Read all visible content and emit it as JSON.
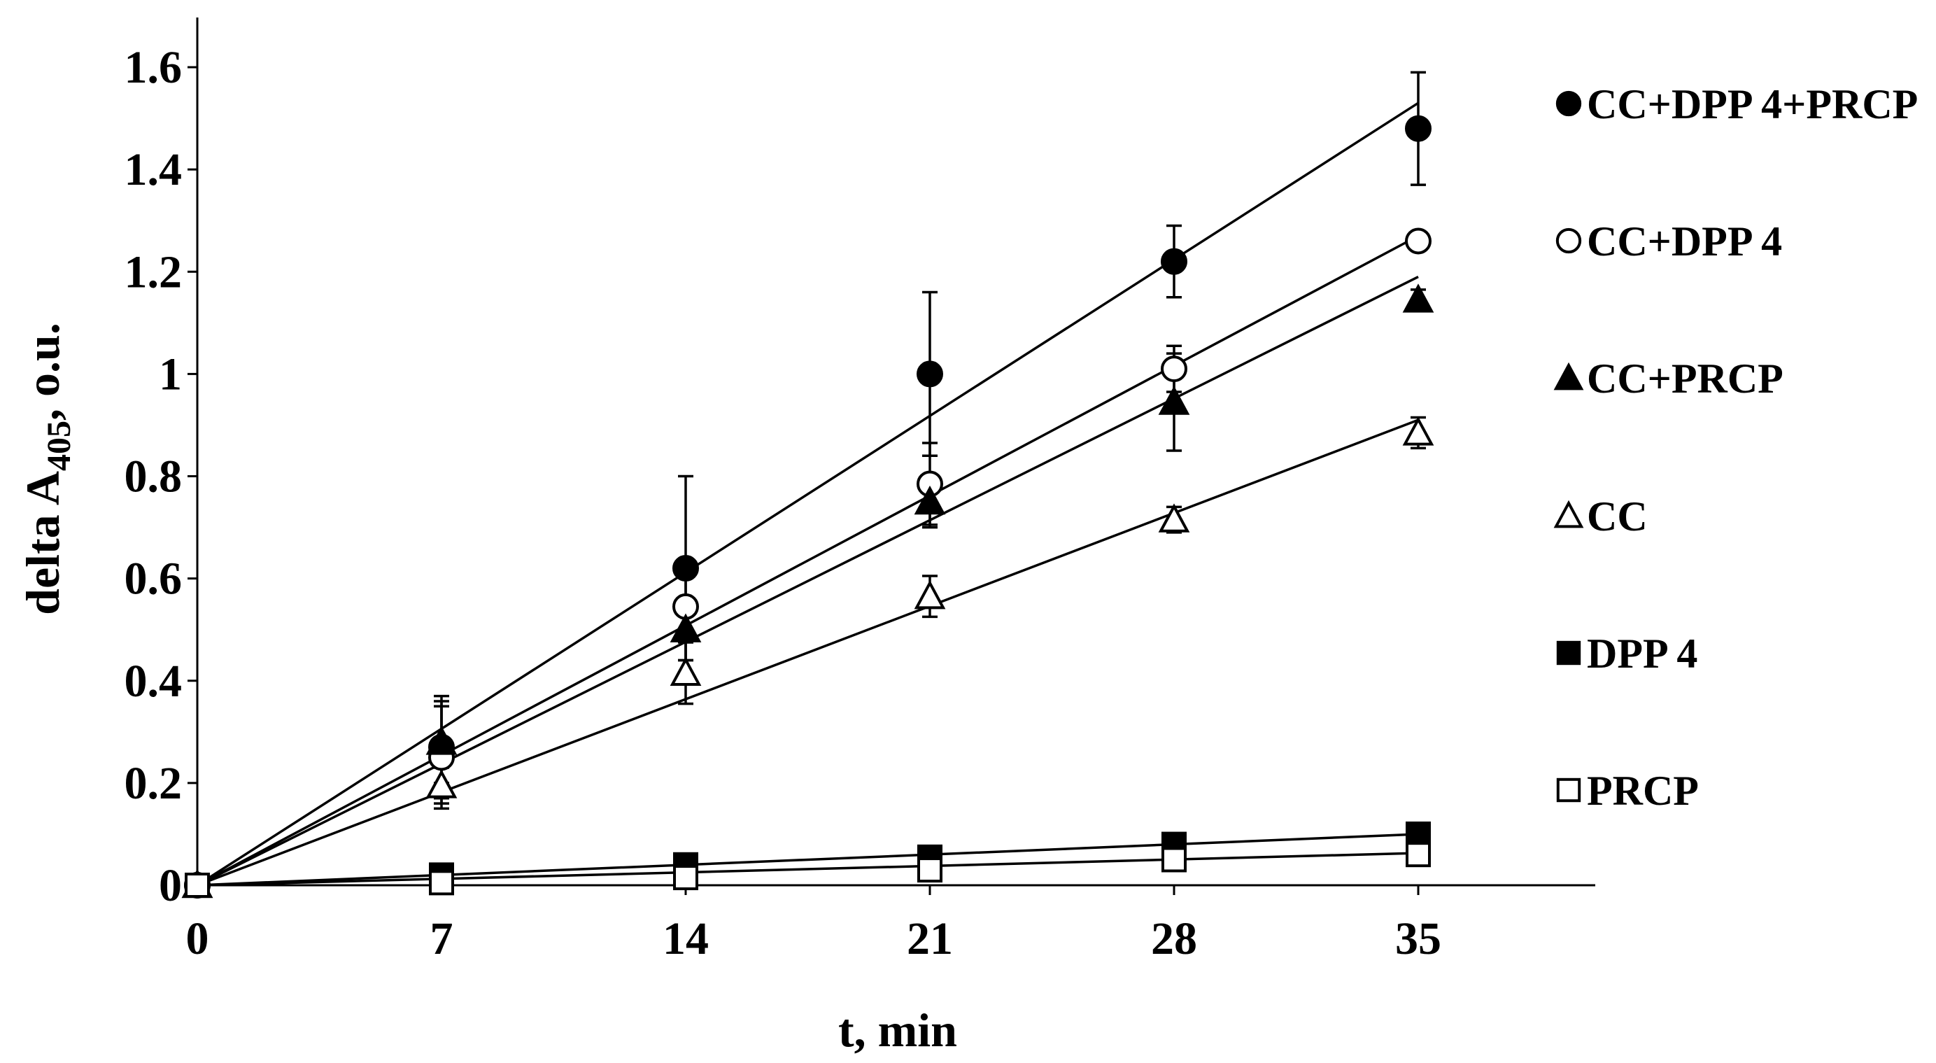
{
  "chart_data": {
    "type": "scatter",
    "title": "",
    "xlabel": "t, min",
    "ylabel_prefix": "delta A",
    "ylabel_subscript": "405",
    "ylabel_suffix": ", o.u.",
    "xlim": [
      0,
      40
    ],
    "ylim": [
      0,
      1.7
    ],
    "x_ticks": [
      0,
      7,
      14,
      21,
      28,
      35
    ],
    "x_tick_labels": [
      "0",
      "7",
      "14",
      "21",
      "28",
      "35"
    ],
    "y_ticks": [
      0,
      0.2,
      0.4,
      0.6,
      0.8,
      1.0,
      1.2,
      1.4,
      1.6
    ],
    "y_tick_labels": [
      "0",
      "0.2",
      "0.4",
      "0.6",
      "0.8",
      "1",
      "1.2",
      "1.4",
      "1.6"
    ],
    "grid": false,
    "legend_position": "right",
    "trendlines": "linear",
    "x": [
      0,
      7,
      14,
      21,
      28,
      35
    ],
    "series": [
      {
        "name": "CC+DPP 4+PRCP",
        "marker": "circle-filled",
        "values": [
          0,
          0.27,
          0.62,
          1.0,
          1.22,
          1.48
        ],
        "errors": [
          0,
          0.1,
          0.18,
          0.16,
          0.07,
          0.11
        ],
        "fit_end": 1.53
      },
      {
        "name": "CC+DPP 4",
        "marker": "circle-open",
        "values": [
          0,
          0.25,
          0.545,
          0.785,
          1.01,
          1.26
        ],
        "errors": [
          0,
          0.1,
          0.06,
          0.08,
          0.045,
          0.015
        ],
        "fit_end": 1.27
      },
      {
        "name": "CC+PRCP",
        "marker": "triangle-filled",
        "values": [
          0,
          0.28,
          0.5,
          0.75,
          0.945,
          1.145
        ],
        "errors": [
          0,
          0.08,
          0.06,
          0.05,
          0.095,
          0.02
        ],
        "fit_end": 1.19
      },
      {
        "name": "CC",
        "marker": "triangle-open",
        "values": [
          0,
          0.195,
          0.415,
          0.565,
          0.715,
          0.885
        ],
        "errors": [
          0,
          0.035,
          0.06,
          0.04,
          0.025,
          0.03
        ],
        "fit_end": 0.91
      },
      {
        "name": "DPP 4",
        "marker": "square-filled",
        "values": [
          0,
          0.02,
          0.04,
          0.055,
          0.08,
          0.1
        ],
        "errors": [
          0,
          0,
          0,
          0,
          0,
          0
        ],
        "fit_end": 0.1
      },
      {
        "name": "PRCP",
        "marker": "square-open",
        "values": [
          0,
          0.005,
          0.015,
          0.03,
          0.05,
          0.06
        ],
        "errors": [
          0,
          0,
          0,
          0,
          0,
          0
        ],
        "fit_end": 0.063
      }
    ]
  }
}
